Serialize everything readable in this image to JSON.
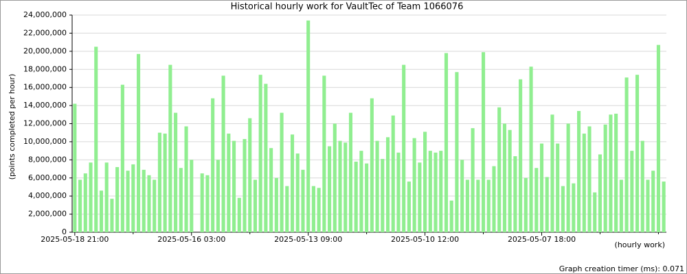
{
  "chart_data": {
    "type": "bar",
    "title": "Historical hourly work for VaultTec of Team 1066076",
    "y_label": "(points completed per hour)",
    "x_label": "(hourly work)",
    "footer": "Graph creation timer (ms): 0.071",
    "color": "#90ee90",
    "grid": true,
    "categories": [
      "2025-05-18 21:00",
      null,
      null,
      null,
      null,
      null,
      null,
      null,
      null,
      null,
      null,
      null,
      null,
      null,
      null,
      null,
      null,
      null,
      null,
      null,
      null,
      null,
      "2025-05-16 03:00",
      null,
      null,
      null,
      null,
      null,
      null,
      null,
      null,
      null,
      null,
      null,
      null,
      null,
      null,
      null,
      null,
      null,
      null,
      null,
      null,
      null,
      "2025-05-13 09:00",
      null,
      null,
      null,
      null,
      null,
      null,
      null,
      null,
      null,
      null,
      null,
      null,
      null,
      null,
      null,
      null,
      null,
      null,
      null,
      null,
      null,
      "2025-05-10 12:00",
      null,
      null,
      null,
      null,
      null,
      null,
      null,
      null,
      null,
      null,
      null,
      null,
      null,
      null,
      null,
      null,
      null,
      null,
      null,
      null,
      null,
      "2025-05-07 18:00",
      null,
      null,
      null,
      null,
      null,
      null,
      null,
      null,
      null,
      null,
      null,
      null,
      null,
      null,
      null,
      null,
      null,
      null,
      null,
      null,
      null,
      null,
      null
    ],
    "values": [
      14200000,
      5800000,
      6500000,
      7700000,
      20500000,
      4600000,
      7700000,
      3700000,
      7200000,
      16300000,
      6800000,
      7500000,
      19700000,
      6900000,
      6300000,
      5800000,
      11000000,
      10900000,
      18500000,
      13200000,
      7100000,
      11700000,
      8000000,
      0,
      6500000,
      6300000,
      14800000,
      8000000,
      17300000,
      10900000,
      10100000,
      3800000,
      10300000,
      12600000,
      5800000,
      17400000,
      16400000,
      9300000,
      6000000,
      13200000,
      5100000,
      10800000,
      8700000,
      6900000,
      23400000,
      5100000,
      4900000,
      17300000,
      9500000,
      12000000,
      10100000,
      9900000,
      13200000,
      7800000,
      9000000,
      7600000,
      14800000,
      10100000,
      8100000,
      10500000,
      12900000,
      8800000,
      18500000,
      5600000,
      10400000,
      7700000,
      11100000,
      9000000,
      8800000,
      9000000,
      19800000,
      3500000,
      17700000,
      8000000,
      5800000,
      11500000,
      5800000,
      19900000,
      5800000,
      7300000,
      13800000,
      12000000,
      11300000,
      8400000,
      16900000,
      6000000,
      18300000,
      7100000,
      9800000,
      6100000,
      13000000,
      9800000,
      5100000,
      12000000,
      5400000,
      13400000,
      10900000,
      11700000,
      4400000,
      8600000,
      11900000,
      13000000,
      13100000,
      5800000,
      17100000,
      9000000,
      17400000,
      10100000,
      5800000,
      6800000,
      20700000,
      5600000
    ],
    "ylim": [
      0,
      24000000
    ],
    "yticks": [
      0,
      {
        "value": 2000000,
        "label": "2,000,000"
      },
      {
        "value": 4000000,
        "label": "4,000,000"
      },
      {
        "value": 6000000,
        "label": "6,000,000"
      },
      {
        "value": 8000000,
        "label": "8,000,000"
      },
      {
        "value": 10000000,
        "label": "10,000,000"
      },
      {
        "value": 12000000,
        "label": "12,000,000"
      },
      {
        "value": 14000000,
        "label": "14,000,000"
      },
      {
        "value": 16000000,
        "label": "16,000,000"
      },
      {
        "value": 18000000,
        "label": "18,000,000"
      },
      {
        "value": 20000000,
        "label": "20,000,000"
      },
      {
        "value": 22000000,
        "label": "22,000,000"
      },
      {
        "value": 24000000,
        "label": "24,000,000"
      }
    ]
  }
}
